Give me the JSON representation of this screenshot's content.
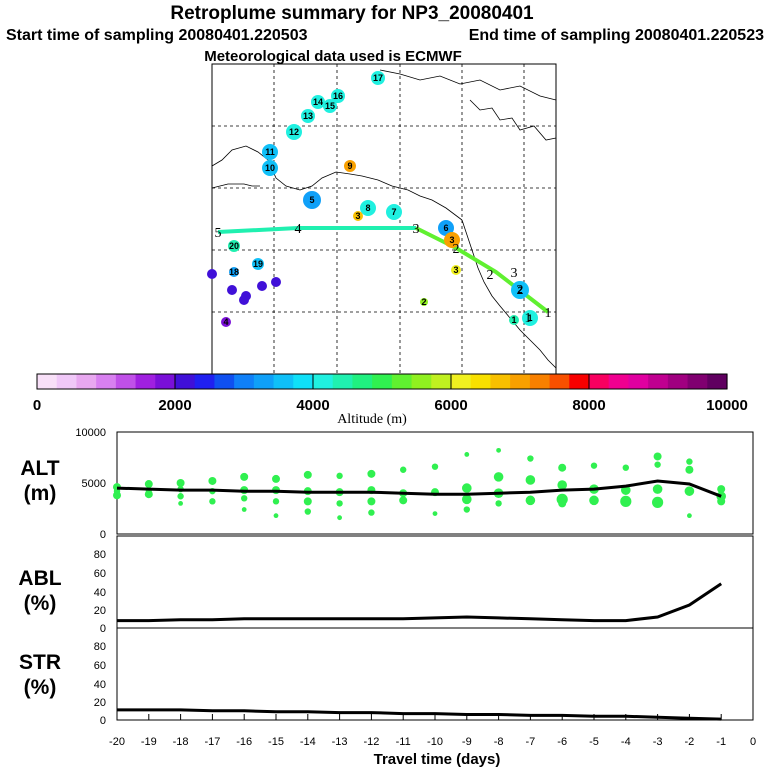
{
  "header": {
    "title": "Retroplume summary for NP3_20080401",
    "start_label": "Start time of sampling 20080401.220503",
    "end_label": "End time of sampling 20080401.220523",
    "met_label": "Meteorological data used is ECMWF"
  },
  "colorbar": {
    "title": "Altitude (m)",
    "tick_labels": [
      "0",
      "2000",
      "4000",
      "6000",
      "8000",
      "10000"
    ],
    "range": [
      0,
      10000
    ],
    "colors": [
      "#f8e0f8",
      "#f0c8f8",
      "#e8a8f0",
      "#d880f0",
      "#c050e8",
      "#a020e0",
      "#7a10d8",
      "#4010d8",
      "#2020f0",
      "#1050f0",
      "#1080f8",
      "#10a0f8",
      "#10c0f8",
      "#10e0f8",
      "#20f0e0",
      "#20f0b0",
      "#20f080",
      "#30f050",
      "#60f030",
      "#90f020",
      "#c0f020",
      "#f0f020",
      "#f8e000",
      "#f8c000",
      "#f8a000",
      "#f88000",
      "#f85000",
      "#f80000",
      "#f80060",
      "#f00090",
      "#e000a0",
      "#c00090",
      "#a00080",
      "#800070",
      "#600060"
    ]
  },
  "map": {
    "trajectory_labels": [
      "5",
      "4",
      "3",
      "2",
      "2",
      "3",
      "2",
      "1",
      "1"
    ],
    "cluster_labels": [
      "17",
      "16",
      "15",
      "14",
      "13",
      "12",
      "11",
      "10",
      "9",
      "8",
      "7",
      "6",
      "5",
      "4",
      "3",
      "3",
      "3",
      "2",
      "2",
      "20",
      "19",
      "18",
      "1",
      "1"
    ]
  },
  "panels": {
    "alt_label": [
      "ALT",
      "(m)"
    ],
    "abl_label": [
      "ABL",
      "(%)"
    ],
    "str_label": [
      "STR",
      "(%)"
    ],
    "alt_ticks": [
      "10000",
      "5000",
      "0"
    ],
    "pct_ticks": [
      "80",
      "60",
      "40",
      "20",
      "0"
    ],
    "x_ticks": [
      "-20",
      "-19",
      "-18",
      "-17",
      "-16",
      "-15",
      "-14",
      "-13",
      "-12",
      "-11",
      "-10",
      "-9",
      "-8",
      "-7",
      "-6",
      "-5",
      "-4",
      "-3",
      "-2",
      "-1",
      "0"
    ],
    "x_title": "Travel time (days)"
  },
  "chart_data": [
    {
      "type": "line",
      "name": "ALT",
      "title": "",
      "xlabel": "Travel time (days)",
      "ylabel": "ALT (m)",
      "x": [
        -20,
        -19,
        -18,
        -17,
        -16,
        -15,
        -14,
        -13,
        -12,
        -11,
        -10,
        -9,
        -8,
        -7,
        -6,
        -5,
        -4,
        -3,
        -2,
        -1
      ],
      "ylim": [
        0,
        10000
      ],
      "xlim": [
        -20,
        0
      ],
      "series": [
        {
          "name": "mean altitude",
          "values": [
            4500,
            4400,
            4300,
            4300,
            4200,
            4200,
            4100,
            4100,
            4100,
            4000,
            3900,
            3900,
            4000,
            4100,
            4300,
            4400,
            4700,
            5200,
            4900,
            3700
          ]
        }
      ],
      "cluster_points": {
        "x": [
          -20,
          -20,
          -20,
          -19,
          -19,
          -19,
          -18,
          -18,
          -18,
          -18,
          -17,
          -17,
          -17,
          -16,
          -16,
          -16,
          -16,
          -15,
          -15,
          -15,
          -15,
          -14,
          -14,
          -14,
          -14,
          -13,
          -13,
          -13,
          -13,
          -12,
          -12,
          -12,
          -12,
          -11,
          -11,
          -11,
          -10,
          -10,
          -10,
          -9,
          -9,
          -9,
          -9,
          -8,
          -8,
          -8,
          -8,
          -7,
          -7,
          -7,
          -6,
          -6,
          -6,
          -6,
          -5,
          -5,
          -5,
          -4,
          -4,
          -4,
          -3,
          -3,
          -3,
          -3,
          -2,
          -2,
          -2,
          -2,
          -1,
          -1,
          -1
        ],
        "y": [
          3800,
          4600,
          4200,
          4900,
          3900,
          4300,
          5000,
          3700,
          4400,
          3000,
          5200,
          4200,
          3200,
          5600,
          4300,
          3500,
          2400,
          5400,
          4300,
          3200,
          1800,
          5800,
          4200,
          3200,
          2200,
          5700,
          4100,
          3000,
          1600,
          5900,
          4300,
          3200,
          2100,
          6300,
          4000,
          3300,
          6600,
          4100,
          2000,
          7800,
          4500,
          3400,
          2400,
          8200,
          5600,
          4000,
          3000,
          7400,
          5300,
          3300,
          6500,
          4800,
          3400,
          3000,
          6700,
          4400,
          3300,
          6500,
          4300,
          3200,
          7600,
          6800,
          4400,
          3100,
          7100,
          6300,
          4200,
          1800,
          4400,
          3700,
          3200
        ],
        "sizes": [
          5,
          5,
          4,
          5,
          5,
          4,
          5,
          4,
          4,
          3,
          5,
          4,
          4,
          5,
          5,
          4,
          3,
          5,
          5,
          4,
          3,
          5,
          5,
          5,
          4,
          4,
          5,
          4,
          3,
          5,
          5,
          5,
          4,
          4,
          5,
          5,
          4,
          5,
          3,
          3,
          6,
          6,
          4,
          3,
          6,
          6,
          4,
          4,
          6,
          6,
          5,
          6,
          7,
          5,
          4,
          6,
          6,
          4,
          6,
          7,
          5,
          4,
          6,
          7,
          4,
          5,
          6,
          3,
          5,
          6,
          5
        ]
      }
    },
    {
      "type": "line",
      "name": "ABL",
      "xlabel": "Travel time (days)",
      "ylabel": "ABL (%)",
      "x": [
        -20,
        -19,
        -18,
        -17,
        -16,
        -15,
        -14,
        -13,
        -12,
        -11,
        -10,
        -9,
        -8,
        -7,
        -6,
        -5,
        -4,
        -3,
        -2,
        -1
      ],
      "ylim": [
        0,
        100
      ],
      "xlim": [
        -20,
        0
      ],
      "series": [
        {
          "name": "ABL fraction",
          "values": [
            8,
            8,
            9,
            9,
            10,
            10,
            10,
            10,
            10,
            10,
            11,
            12,
            11,
            10,
            9,
            8,
            8,
            12,
            25,
            48
          ]
        }
      ]
    },
    {
      "type": "line",
      "name": "STR",
      "xlabel": "Travel time (days)",
      "ylabel": "STR (%)",
      "x": [
        -20,
        -19,
        -18,
        -17,
        -16,
        -15,
        -14,
        -13,
        -12,
        -11,
        -10,
        -9,
        -8,
        -7,
        -6,
        -5,
        -4,
        -3,
        -2,
        -1
      ],
      "ylim": [
        0,
        100
      ],
      "xlim": [
        -20,
        0
      ],
      "series": [
        {
          "name": "stratospheric fraction",
          "values": [
            11,
            11,
            11,
            10,
            10,
            9,
            9,
            8,
            8,
            7,
            7,
            6,
            6,
            5,
            5,
            4,
            4,
            3,
            2,
            1
          ]
        }
      ]
    }
  ]
}
